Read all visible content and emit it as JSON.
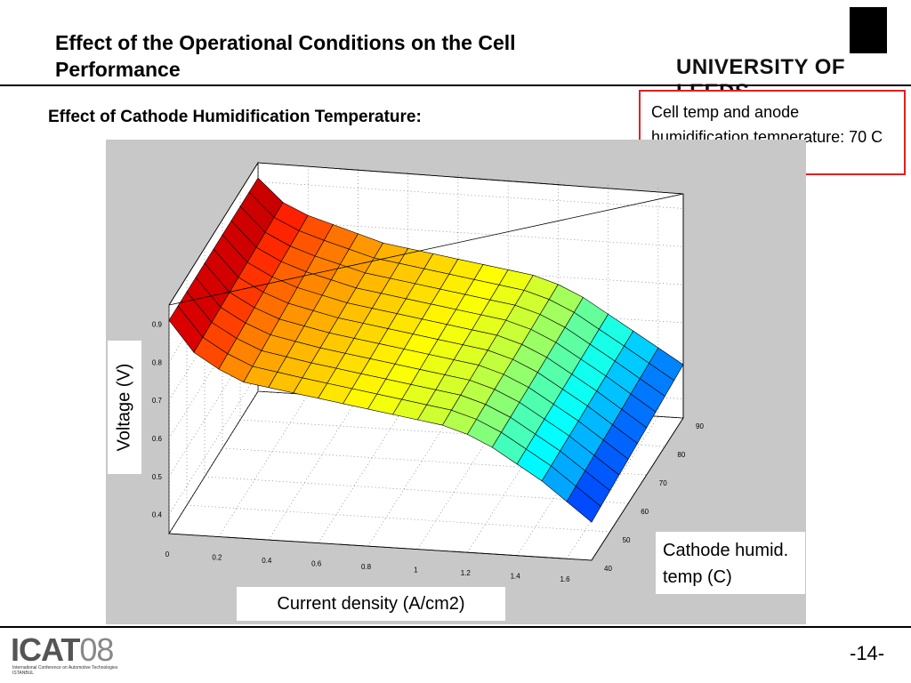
{
  "slide": {
    "title": "Effect of the Operational Conditions on the Cell Performance",
    "subtitle": "Effect of Cathode Humidification Temperature:",
    "note": "Cell temp and anode humidification temperature: 70 C",
    "university": "UNIVERSITY OF LEEDS",
    "page_number": "-14-",
    "footer_logo": "ICAT",
    "footer_logo_year": "08",
    "footer_logo_sub": "International Conference on Automotive Technologies ISTANBUL"
  },
  "chart_data": {
    "type": "surface",
    "xlabel": "Current density (A/cm2)",
    "ylabel": "Voltage (V)",
    "zaxis_label": "Cathode humid. temp (C)",
    "x_ticks": [
      "0",
      "0.2",
      "0.4",
      "0.6",
      "0.8",
      "1",
      "1.2",
      "1.4",
      "1.6"
    ],
    "y_ticks": [
      "0.4",
      "0.5",
      "0.6",
      "0.7",
      "0.8",
      "0.9"
    ],
    "z_ticks": [
      "40",
      "50",
      "60",
      "70",
      "80",
      "90"
    ],
    "xlim": [
      0,
      1.7
    ],
    "ylim": [
      0.35,
      0.95
    ],
    "zlim": [
      40,
      90
    ],
    "grid": true,
    "colormap": "jet",
    "current_density": [
      0,
      0.1,
      0.2,
      0.3,
      0.4,
      0.5,
      0.6,
      0.7,
      0.8,
      0.9,
      1.0,
      1.1,
      1.2,
      1.3,
      1.4,
      1.5,
      1.6,
      1.7
    ],
    "cathode_temp": [
      40,
      45,
      50,
      55,
      60,
      65,
      70,
      75,
      80,
      85,
      90
    ],
    "voltage_at_40C": [
      0.91,
      0.83,
      0.79,
      0.76,
      0.75,
      0.74,
      0.73,
      0.72,
      0.71,
      0.7,
      0.69,
      0.68,
      0.66,
      0.63,
      0.59,
      0.55,
      0.5,
      0.45
    ],
    "voltage_at_90C": [
      0.91,
      0.85,
      0.82,
      0.8,
      0.78,
      0.76,
      0.75,
      0.74,
      0.73,
      0.72,
      0.71,
      0.7,
      0.68,
      0.65,
      0.61,
      0.57,
      0.53,
      0.49
    ]
  }
}
